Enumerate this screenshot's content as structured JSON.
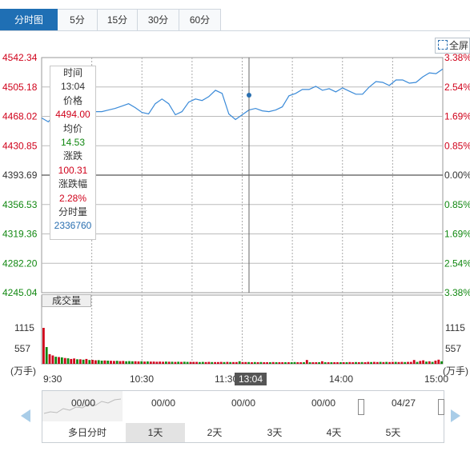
{
  "tabs": [
    {
      "label": "分时图",
      "active": true
    },
    {
      "label": "5分",
      "active": false
    },
    {
      "label": "15分",
      "active": false
    },
    {
      "label": "30分",
      "active": false
    },
    {
      "label": "60分",
      "active": false
    }
  ],
  "fullscreen_label": "全屏",
  "tooltip": {
    "time_label": "时间",
    "time": "13:04",
    "price_label": "价格",
    "price": "4494.00",
    "avg_label": "均价",
    "avg": "14.53",
    "change_label": "涨跌",
    "change": "100.31",
    "change_pct_label": "涨跌幅",
    "change_pct": "2.28%",
    "volume_label": "分时量",
    "volume": "2336760"
  },
  "volume_label": "成交量",
  "crosshair_time": "13:04",
  "navigator": {
    "dates": [
      "00/00",
      "00/00",
      "00/00",
      "00/00",
      "04/27"
    ],
    "days": [
      {
        "label": "多日分时",
        "active": false
      },
      {
        "label": "1天",
        "active": true
      },
      {
        "label": "2天",
        "active": false
      },
      {
        "label": "3天",
        "active": false
      },
      {
        "label": "4天",
        "active": false
      },
      {
        "label": "5天",
        "active": false
      }
    ]
  },
  "colors": {
    "up": "#d0021b",
    "down": "#118811",
    "price_line": "#3a8ad8",
    "tab_active": "#1f6fb4"
  },
  "chart_data": {
    "type": "line",
    "price_ticks": [
      "4542.34",
      "4505.18",
      "4468.02",
      "4430.85",
      "4393.69",
      "4356.53",
      "4319.36",
      "4282.20",
      "4245.04"
    ],
    "pct_ticks": [
      "3.38%",
      "2.54%",
      "1.69%",
      "0.85%",
      "0.00%",
      "0.85%",
      "1.69%",
      "2.54%",
      "3.38%"
    ],
    "ylim": [
      4245.04,
      4542.34
    ],
    "base_price": 4393.69,
    "volume_ticks": [
      "1115",
      "557"
    ],
    "volume_unit": "(万手)",
    "x_ticks": [
      "9:30",
      "10:30",
      "11:30",
      "14:00",
      "15:00"
    ],
    "series": [
      {
        "x": [
          0,
          4,
          8,
          12,
          16,
          20,
          24,
          28,
          32,
          36,
          40,
          44,
          48,
          52,
          56,
          60,
          64,
          68,
          72,
          76,
          80,
          84,
          88,
          92,
          96,
          100,
          104,
          108,
          112,
          116,
          120,
          124,
          128,
          132,
          136,
          140,
          144,
          148,
          152,
          156,
          160,
          164,
          168,
          172,
          176,
          180,
          184,
          188,
          192,
          196,
          200,
          204,
          208,
          212,
          216,
          220,
          224,
          228,
          232,
          236,
          240
        ],
        "values": [
          4466,
          4461,
          4471,
          4478,
          4482,
          4480,
          4477,
          4475,
          4474,
          4474,
          4476,
          4478,
          4481,
          4484,
          4479,
          4473,
          4471,
          4484,
          4490,
          4484,
          4470,
          4474,
          4486,
          4490,
          4488,
          4493,
          4501,
          4497,
          4471,
          4464,
          4470,
          4476,
          4478,
          4475,
          4474,
          4476,
          4480,
          4494,
          4497,
          4502,
          4502,
          4506,
          4501,
          4503,
          4499,
          4504,
          4500,
          4496,
          4496,
          4505,
          4512,
          4511,
          4507,
          4514,
          4514,
          4510,
          4511,
          4518,
          4523,
          4522,
          4528
        ]
      }
    ],
    "volume": {
      "values": [
        1115,
        520,
        300,
        260,
        220,
        210,
        200,
        180,
        170,
        150,
        165,
        140,
        140,
        130,
        150,
        120,
        125,
        110,
        115,
        100,
        105,
        100,
        95,
        90,
        95,
        85,
        90,
        80,
        85,
        80,
        80,
        75,
        80,
        70,
        75,
        70,
        70,
        65,
        70,
        65,
        70,
        65,
        65,
        60,
        65,
        60,
        65,
        60,
        60,
        60,
        60,
        55,
        60,
        55,
        60,
        55,
        55,
        55,
        60,
        55,
        60,
        55,
        55,
        55,
        80,
        55,
        55,
        55,
        50,
        55,
        50,
        55,
        50,
        50,
        50,
        55,
        50,
        50,
        50,
        50,
        50,
        50,
        55,
        50,
        50,
        50,
        120,
        50,
        50,
        50,
        50,
        80,
        50,
        50,
        50,
        50,
        50,
        50,
        50,
        50,
        55,
        50,
        55,
        50,
        55,
        50,
        60,
        55,
        60,
        55,
        60,
        55,
        60,
        55,
        60,
        60,
        55,
        60,
        55,
        60,
        60,
        120,
        60,
        90,
        110,
        70,
        80,
        60,
        100,
        130,
        80
      ],
      "up": [
        1,
        0,
        1,
        1,
        0,
        1,
        0,
        1,
        0,
        1,
        1,
        0,
        1,
        0,
        1,
        0,
        1,
        1,
        0,
        0,
        1,
        0,
        1,
        1,
        0,
        1,
        1,
        0,
        0,
        0,
        1,
        1,
        0,
        1,
        0,
        1,
        1,
        1,
        1,
        1,
        0,
        1,
        0,
        1,
        0,
        1,
        0,
        0,
        1,
        1,
        1,
        0,
        0,
        1,
        1,
        0,
        1,
        1,
        1,
        0,
        1,
        0,
        1,
        1,
        0,
        1,
        1,
        0,
        1,
        0,
        1,
        0,
        1,
        1,
        0,
        1,
        0,
        1,
        1,
        0,
        1,
        0,
        0,
        1,
        1,
        0,
        1,
        0,
        1,
        1,
        0,
        1,
        0,
        1,
        0,
        1,
        1,
        0,
        1,
        0,
        1,
        1,
        0,
        1,
        0,
        1,
        1,
        0,
        1,
        1,
        0,
        1,
        0,
        1,
        1,
        0,
        1,
        1,
        0,
        1,
        1,
        1,
        0,
        1,
        1,
        0,
        1,
        0,
        1,
        1,
        0
      ]
    }
  }
}
